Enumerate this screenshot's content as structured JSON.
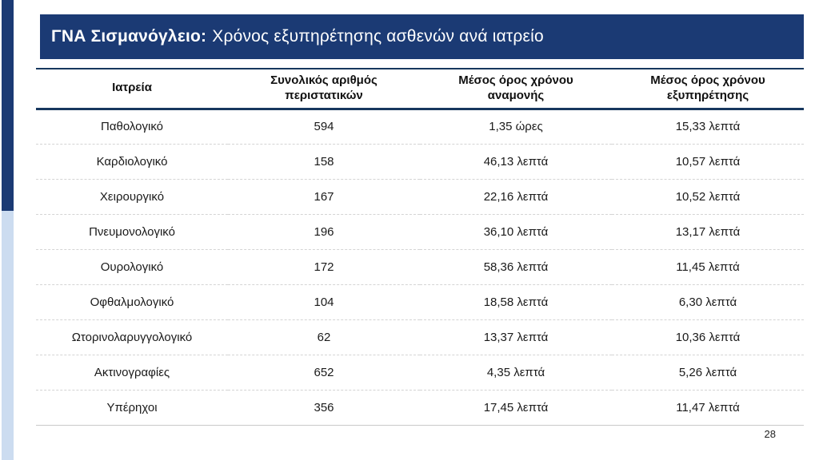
{
  "title": {
    "bold_part": "ΓΝΑ Σισμανόγλειο:",
    "rest_part": "Χρόνος εξυπηρέτησης ασθενών ανά ιατρείο"
  },
  "table": {
    "headers": {
      "clinic": "Ιατρεία",
      "cases": "Συνολικός αριθμός περιστατικών",
      "wait": "Μέσος όρος χρόνου αναμονής",
      "service": "Μέσος όρος χρόνου εξυπηρέτησης"
    },
    "rows": [
      {
        "clinic": "Παθολογικό",
        "cases": "594",
        "wait": "1,35 ώρες",
        "service": "15,33 λεπτά"
      },
      {
        "clinic": "Καρδιολογικό",
        "cases": "158",
        "wait": "46,13 λεπτά",
        "service": "10,57 λεπτά"
      },
      {
        "clinic": "Χειρουργικό",
        "cases": "167",
        "wait": "22,16 λεπτά",
        "service": "10,52 λεπτά"
      },
      {
        "clinic": "Πνευμονολογικό",
        "cases": "196",
        "wait": "36,10 λεπτά",
        "service": "13,17 λεπτά"
      },
      {
        "clinic": "Ουρολογικό",
        "cases": "172",
        "wait": "58,36 λεπτά",
        "service": "11,45 λεπτά"
      },
      {
        "clinic": "Οφθαλμολογικό",
        "cases": "104",
        "wait": "18,58 λεπτά",
        "service": "6,30 λεπτά"
      },
      {
        "clinic": "Ωτορινολαρυγγολογικό",
        "cases": "62",
        "wait": "13,37 λεπτά",
        "service": "10,36 λεπτά"
      },
      {
        "clinic": "Ακτινογραφίες",
        "cases": "652",
        "wait": "4,35 λεπτά",
        "service": "5,26 λεπτά"
      },
      {
        "clinic": "Υπέρηχοι",
        "cases": "356",
        "wait": "17,45 λεπτά",
        "service": "11,47 λεπτά"
      }
    ]
  },
  "page_number": "28",
  "colors": {
    "title_bar_bg": "#1b3a74",
    "accent_line": "#17375e",
    "stripe_dark": "#1b3a74",
    "stripe_light": "#ccdcf0",
    "row_divider": "#d4d4d4",
    "table_bottom": "#c9c9c9",
    "text": "#1a1a1a"
  }
}
